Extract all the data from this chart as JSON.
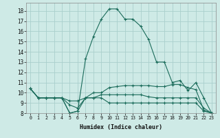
{
  "xlabel": "Humidex (Indice chaleur)",
  "bg_color": "#ceeae6",
  "grid_color": "#aacfcc",
  "line_color": "#1a6b5a",
  "xlim": [
    -0.5,
    23.5
  ],
  "ylim": [
    8,
    18.8
  ],
  "xticks": [
    0,
    1,
    2,
    3,
    4,
    5,
    6,
    7,
    8,
    9,
    10,
    11,
    12,
    13,
    14,
    15,
    16,
    17,
    18,
    19,
    20,
    21,
    22,
    23
  ],
  "yticks": [
    8,
    9,
    10,
    11,
    12,
    13,
    14,
    15,
    16,
    17,
    18
  ],
  "lines": [
    [
      10.4,
      9.5,
      9.5,
      9.5,
      9.5,
      8.0,
      8.2,
      13.3,
      15.5,
      17.2,
      18.2,
      18.2,
      17.2,
      17.2,
      16.5,
      15.2,
      13.0,
      13.0,
      11.0,
      11.2,
      10.2,
      11.0,
      9.5,
      8.0
    ],
    [
      10.4,
      9.5,
      9.5,
      9.5,
      9.5,
      9.2,
      9.2,
      9.5,
      10.0,
      10.0,
      10.5,
      10.6,
      10.7,
      10.7,
      10.7,
      10.7,
      10.6,
      10.6,
      10.8,
      10.8,
      10.5,
      10.3,
      8.3,
      8.0
    ],
    [
      10.4,
      9.5,
      9.5,
      9.5,
      9.5,
      8.8,
      8.5,
      9.5,
      9.5,
      9.8,
      9.8,
      9.8,
      9.8,
      9.8,
      9.8,
      9.6,
      9.5,
      9.5,
      9.5,
      9.5,
      9.5,
      9.5,
      8.5,
      8.0
    ],
    [
      10.4,
      9.5,
      9.5,
      9.5,
      9.5,
      8.0,
      8.2,
      9.5,
      9.5,
      9.5,
      9.0,
      9.0,
      9.0,
      9.0,
      9.0,
      9.0,
      9.0,
      9.0,
      9.0,
      9.0,
      9.0,
      9.0,
      8.2,
      8.0
    ]
  ]
}
